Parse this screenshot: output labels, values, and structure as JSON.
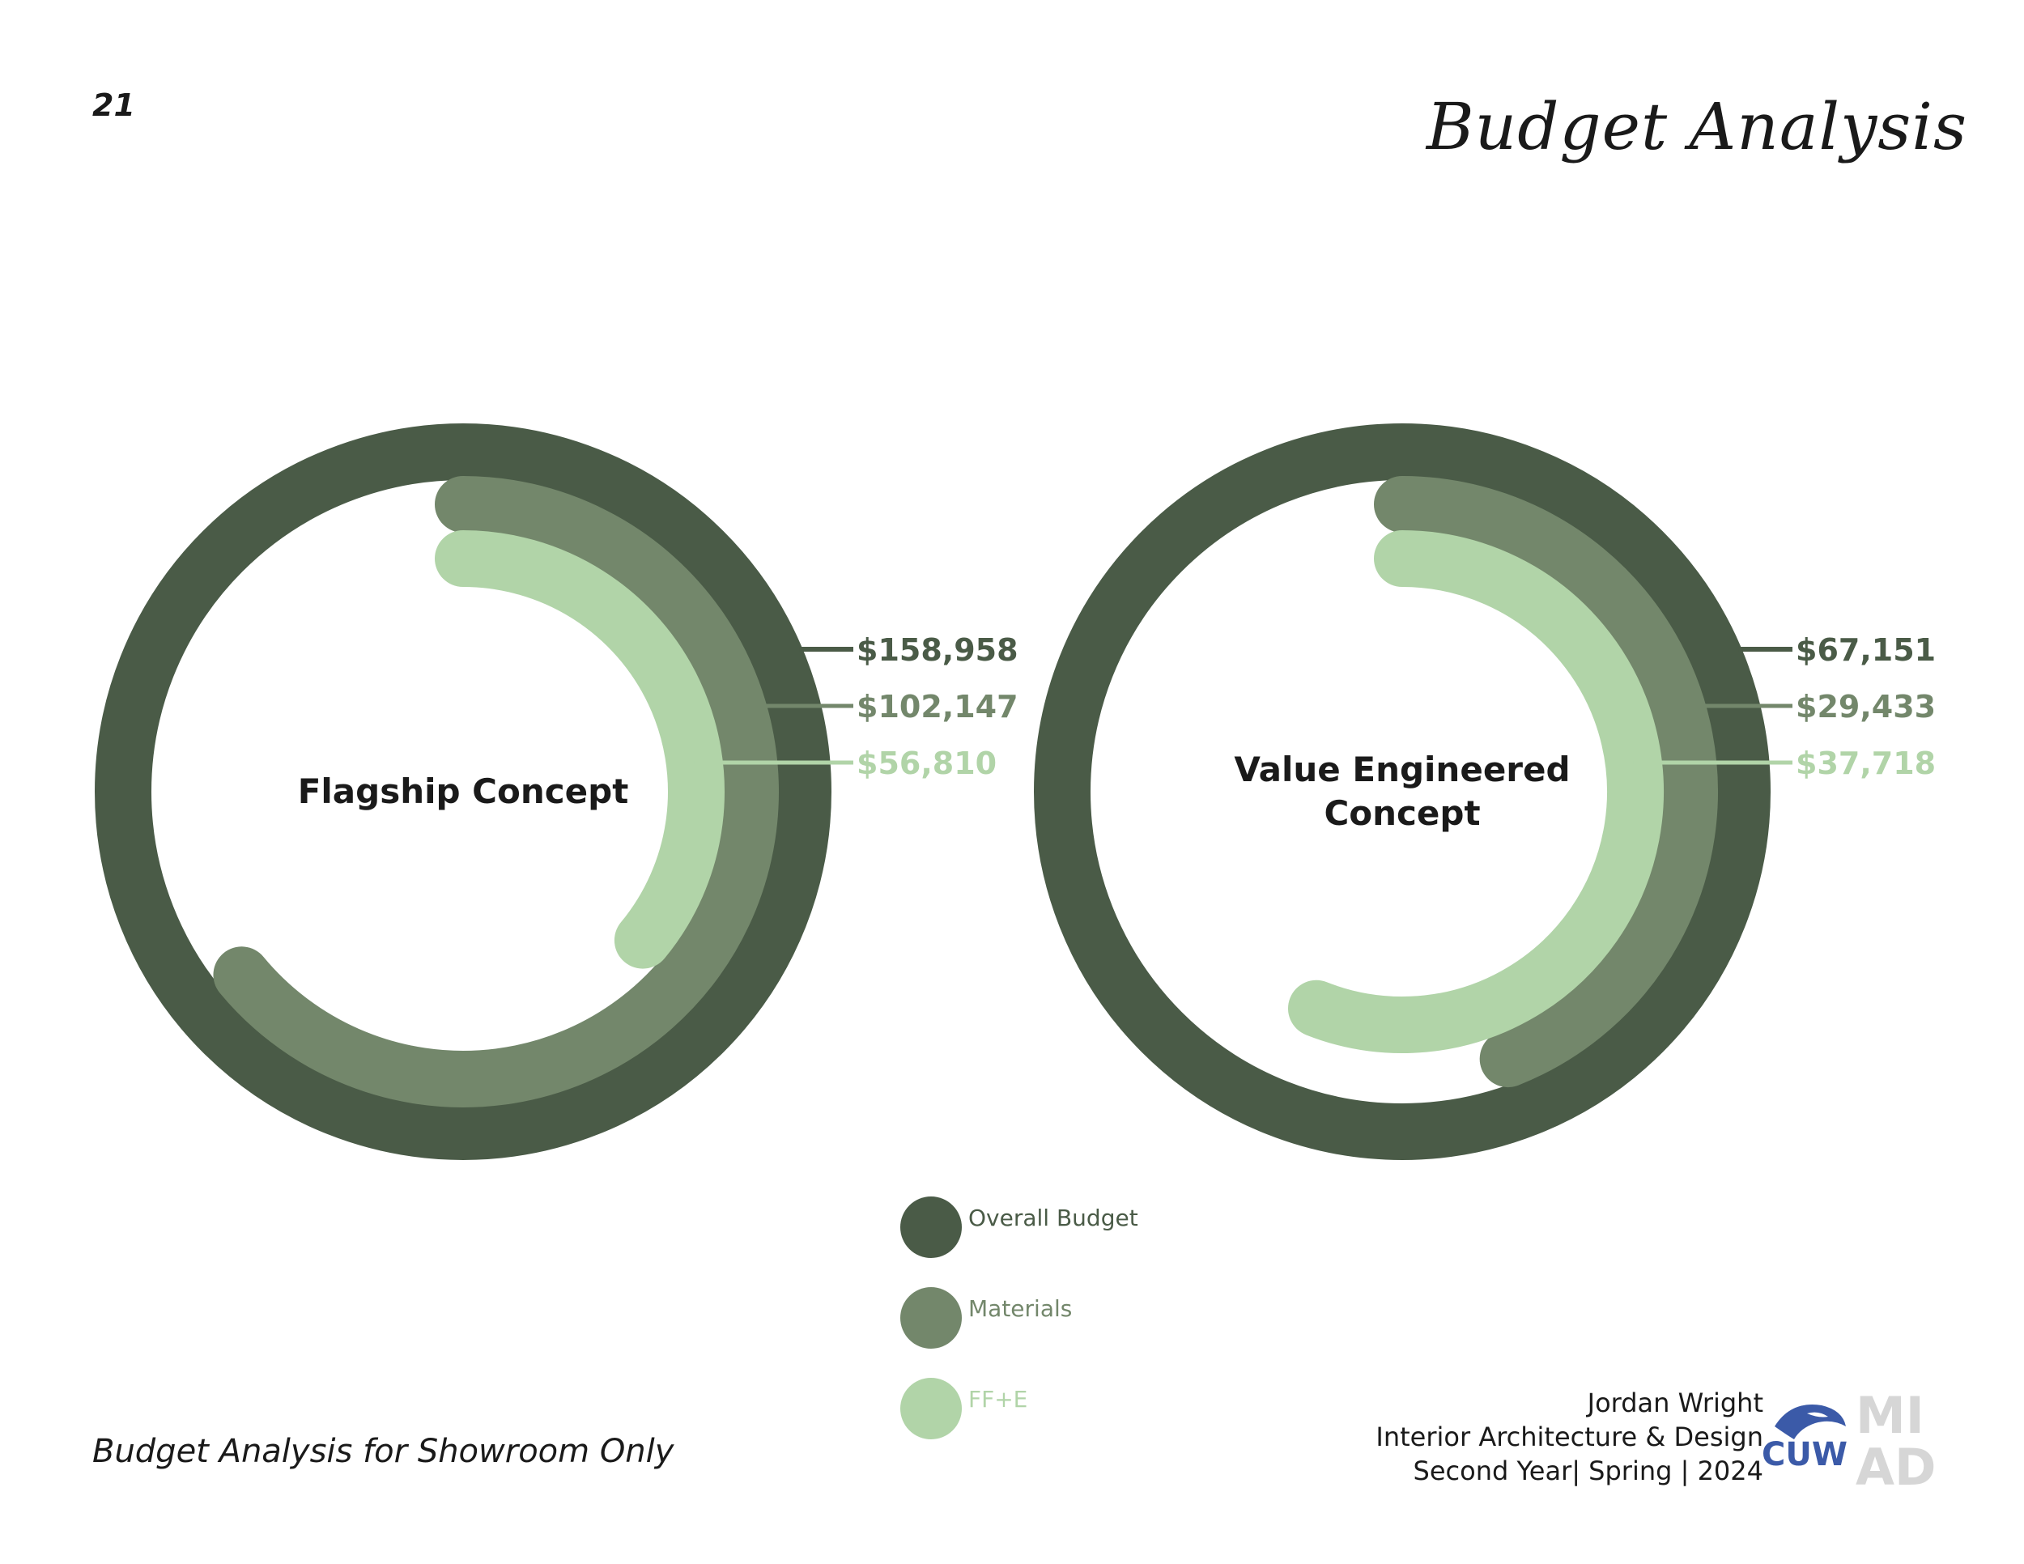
{
  "page": {
    "number": "21",
    "title": "Budget Analysis",
    "footnote": "Budget Analysis for Showroom Only"
  },
  "colors": {
    "overall": "#4a5b47",
    "materials": "#73876b",
    "ffe": "#b1d4a8",
    "label_dark": "#1a1a1a"
  },
  "legend": {
    "items": [
      {
        "label": "Overall Budget",
        "color": "#4a5b47"
      },
      {
        "label": "Materials",
        "color": "#73876b"
      },
      {
        "label": "FF+E",
        "color": "#b1d4a8"
      }
    ]
  },
  "chart_data": [
    {
      "type": "radial-bar",
      "title": "Flagship Concept",
      "series": [
        {
          "name": "Overall Budget",
          "display": "$158,958",
          "fraction_of_circle": 1.0
        },
        {
          "name": "Materials",
          "display": "$102,147",
          "fraction_of_circle": 0.64
        },
        {
          "name": "FF+E",
          "display": "$56,810",
          "fraction_of_circle": 0.36
        }
      ]
    },
    {
      "type": "radial-bar",
      "title": "Value Engineered Concept",
      "title_lines": [
        "Value Engineered",
        "Concept"
      ],
      "series": [
        {
          "name": "Overall Budget",
          "display": "$67,151",
          "fraction_of_circle": 1.0
        },
        {
          "name": "Materials",
          "display": "$29,433",
          "fraction_of_circle": 0.44
        },
        {
          "name": "FF+E",
          "display": "$37,718",
          "fraction_of_circle": 0.56
        }
      ]
    }
  ],
  "credits": {
    "name": "Jordan Wright",
    "program": "Interior Architecture & Design",
    "term": "Second Year| Spring | 2024"
  },
  "logos": {
    "cuw": "CUW",
    "miad_top": "MI",
    "miad_bottom": "AD"
  }
}
